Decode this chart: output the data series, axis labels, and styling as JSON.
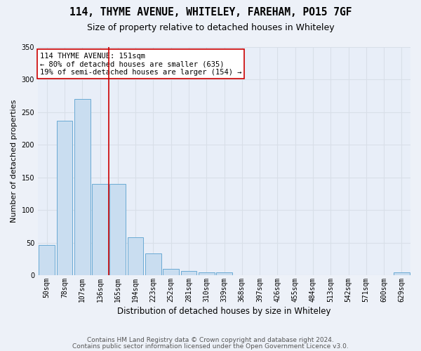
{
  "title": "114, THYME AVENUE, WHITELEY, FAREHAM, PO15 7GF",
  "subtitle": "Size of property relative to detached houses in Whiteley",
  "xlabel": "Distribution of detached houses by size in Whiteley",
  "ylabel": "Number of detached properties",
  "bar_color": "#c9ddf0",
  "bar_edge_color": "#6aaad4",
  "background_color": "#e8eef8",
  "grid_color": "#d8dfe8",
  "fig_background_color": "#edf1f8",
  "categories": [
    "50sqm",
    "78sqm",
    "107sqm",
    "136sqm",
    "165sqm",
    "194sqm",
    "223sqm",
    "252sqm",
    "281sqm",
    "310sqm",
    "339sqm",
    "368sqm",
    "397sqm",
    "426sqm",
    "455sqm",
    "484sqm",
    "513sqm",
    "542sqm",
    "571sqm",
    "600sqm",
    "629sqm"
  ],
  "values": [
    46,
    237,
    270,
    140,
    140,
    58,
    33,
    10,
    7,
    4,
    4,
    0,
    0,
    0,
    0,
    0,
    0,
    0,
    0,
    0,
    4
  ],
  "ylim": [
    0,
    350
  ],
  "yticks": [
    0,
    50,
    100,
    150,
    200,
    250,
    300,
    350
  ],
  "red_line_x": 3.5,
  "annotation_text": "114 THYME AVENUE: 151sqm\n← 80% of detached houses are smaller (635)\n19% of semi-detached houses are larger (154) →",
  "annotation_box_color": "#ffffff",
  "annotation_border_color": "#cc0000",
  "footer_line1": "Contains HM Land Registry data © Crown copyright and database right 2024.",
  "footer_line2": "Contains public sector information licensed under the Open Government Licence v3.0.",
  "title_fontsize": 10.5,
  "subtitle_fontsize": 9,
  "xlabel_fontsize": 8.5,
  "ylabel_fontsize": 8,
  "tick_fontsize": 7,
  "footer_fontsize": 6.5,
  "annotation_fontsize": 7.5
}
